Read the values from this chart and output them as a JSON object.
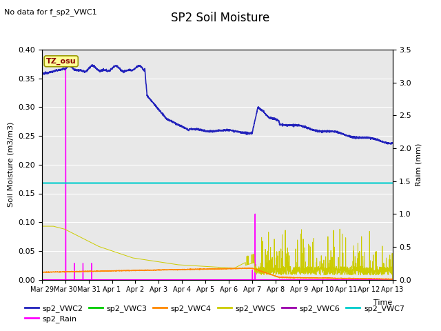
{
  "title": "SP2 Soil Moisture",
  "no_data_text": "No data for f_sp2_VWC1",
  "ylabel_left": "Soil Moisture (m3/m3)",
  "ylabel_right": "Raim (mm)",
  "xlabel": "Time",
  "tz_label": "TZ_osu",
  "ylim_left": [
    0.0,
    0.4
  ],
  "ylim_right": [
    0.0,
    3.5
  ],
  "background_color": "#e8e8e8",
  "figure_background": "#ffffff",
  "x_tick_labels": [
    "Mar 29",
    "Mar 30",
    "Mar 31",
    "Apr 1",
    "Apr 2",
    "Apr 3",
    "Apr 4",
    "Apr 5",
    "Apr 6",
    "Apr 7",
    "Apr 8",
    "Apr 9",
    "Apr 10",
    "Apr 11",
    "Apr 12",
    "Apr 13"
  ],
  "vwc2_color": "#2222bb",
  "vwc3_color": "#00cc00",
  "vwc4_color": "#ff8800",
  "vwc5_color": "#cccc00",
  "vwc6_color": "#9900aa",
  "vwc7_color": "#00cccc",
  "rain_color": "#ff00ff",
  "n_days": 15.5,
  "vwc7_value": 0.168,
  "yticks_left": [
    0.0,
    0.05,
    0.1,
    0.15,
    0.2,
    0.25,
    0.3,
    0.35,
    0.4
  ],
  "yticks_right": [
    0.0,
    0.5,
    1.0,
    1.5,
    2.0,
    2.5,
    3.0,
    3.5
  ]
}
